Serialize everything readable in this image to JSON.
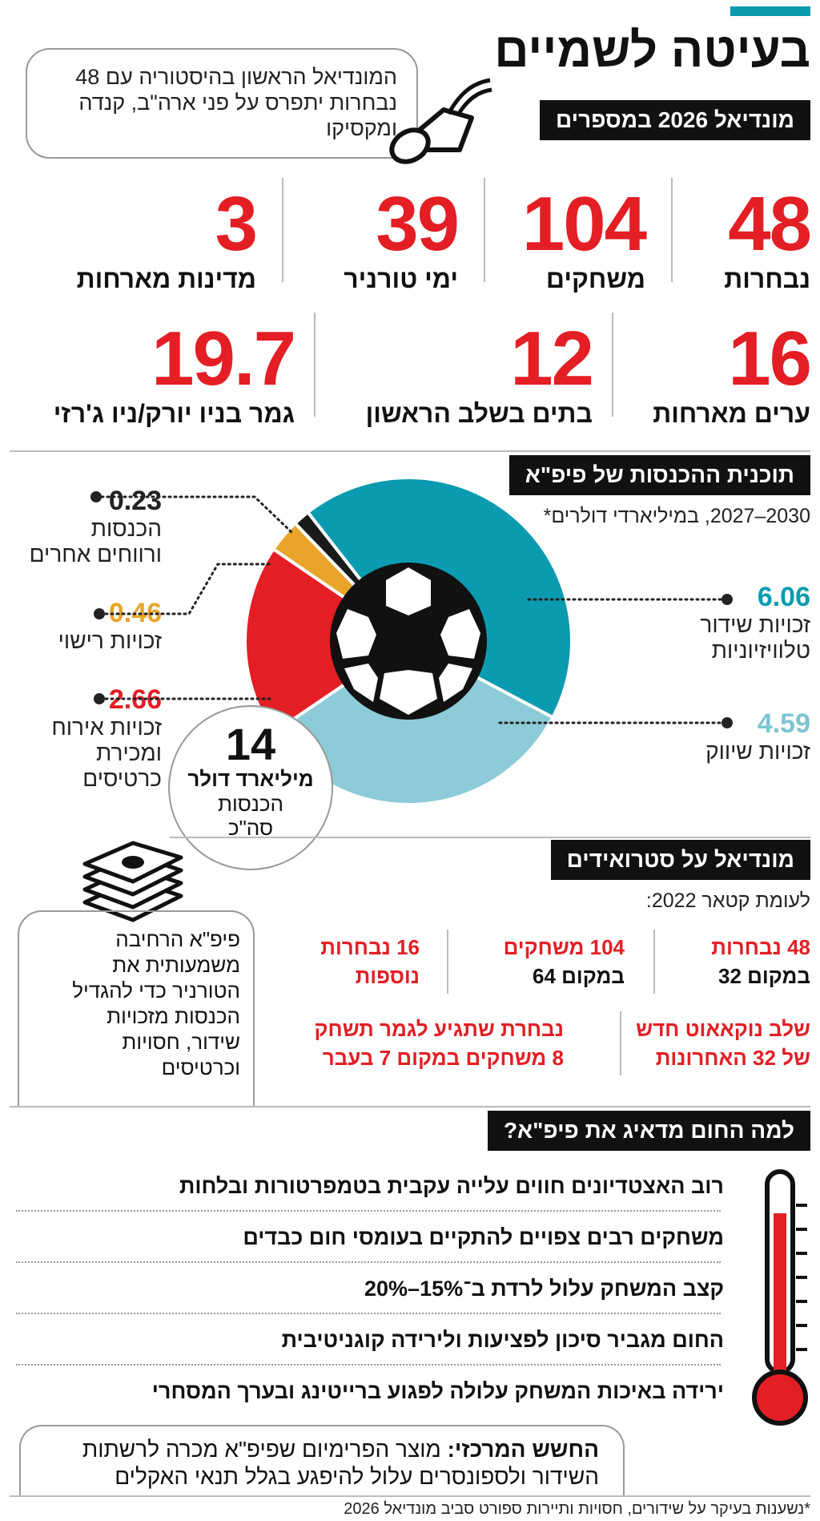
{
  "headline": "בעיטה לשמיים",
  "intro_box": "המונדיאל הראשון בהיסטוריה עם 48 נבחרות יתפרס על פני ארה\"ב, קנדה ומקסיקו",
  "section_numbers": {
    "title": "מונדיאל 2026 במספרים",
    "stats": [
      {
        "value": "48",
        "label": "נבחרות"
      },
      {
        "value": "104",
        "label": "משחקים"
      },
      {
        "value": "39",
        "label": "ימי טורניר"
      },
      {
        "value": "3",
        "label": "מדינות מארחות"
      },
      {
        "value": "16",
        "label": "ערים מארחות"
      },
      {
        "value": "12",
        "label": "בתים בשלב הראשון"
      },
      {
        "value": "19.7",
        "label": "גמר בניו יורק/ניו ג'רזי"
      }
    ]
  },
  "section_revenue": {
    "title": "תוכנית ההכנסות של פיפ\"א",
    "subtitle": "2030–2027, במיליארדי דולרים*",
    "total_value": "14",
    "total_unit": "מיליארד דולר",
    "total_label_1": "הכנסות",
    "total_label_2": "סה\"כ"
  },
  "chart_data": {
    "type": "pie",
    "title": "תוכנית ההכנסות של פיפ\"א",
    "subtitle": "2030–2027, במיליארדי דולרים*",
    "slices": [
      {
        "label_1": "זכויות שידור",
        "label_2": "טלוויזיוניות",
        "value": 6.06,
        "color": "#0b9bb0"
      },
      {
        "label_1": "זכויות שיווק",
        "label_2": "",
        "value": 4.59,
        "color": "#8ccbd7"
      },
      {
        "label_1": "זכויות אירוח",
        "label_2": "ומכירת",
        "label_3": "כרטיסים",
        "value": 2.66,
        "color": "#e31e24"
      },
      {
        "label_1": "זכויות רישוי",
        "label_2": "",
        "value": 0.46,
        "color": "#e8a52a"
      },
      {
        "label_1": "הכנסות",
        "label_2": "ורווחים אחרים",
        "value": 0.23,
        "color": "#1a1a1a"
      }
    ],
    "value_labels": [
      "6.06",
      "4.59",
      "2.66",
      "0.46",
      "0.23"
    ]
  },
  "section_steroids": {
    "title": "מונדיאל על סטרואידים",
    "subtitle": "לעומת קטאר 2022:",
    "items": [
      {
        "line1": "48 נבחרות",
        "line2": "במקום 32"
      },
      {
        "line1": "104 משחקים",
        "line2": "במקום 64"
      },
      {
        "line1": "16 נבחרות",
        "line2": "נוספות"
      },
      {
        "line1": "שלב נוקאאוט חדש",
        "line2": "של 32 האחרונות"
      },
      {
        "line1": "נבחרת שתגיע לגמר תשחק",
        "line2": "8 משחקים במקום 7 בעבר"
      }
    ],
    "side_box": [
      "פיפ\"א הרחיבה",
      "משמעותית את",
      "הטורניר כדי להגדיל",
      "הכנסות מזכויות",
      "שידור, חסויות",
      "וכרטיסים"
    ]
  },
  "section_heat": {
    "title": "למה החום מדאיג את פיפ\"א?",
    "items": [
      "רוב האצטדיונים חווים עלייה עקבית בטמפרטורות ובלחות",
      "משחקים רבים צפויים להתקיים בעומסי חום כבדים",
      "קצב המשחק עלול לרדת ב־15%–20%",
      "החום מגביר סיכון לפציעות ולירידה קוגניטיבית",
      "ירידה באיכות המשחק עלולה לפגוע ברייטינג ובערך המסחרי"
    ],
    "concern_bold": "החשש המרכזי:",
    "concern_text_1": "מוצר הפרימיום שפיפ\"א מכרה לרשתות",
    "concern_text_2": "השידור ולספונסרים עלול להיפגע בגלל תנאי האקלים"
  },
  "footnote": "*נשענות בעיקר על שידורים, חסויות ותיירות ספורט סביב מונדיאל 2026",
  "colors": {
    "accent_red": "#e31e24",
    "teal": "#0b9bb0",
    "light_teal": "#8ccbd7",
    "yellow": "#e8a52a"
  }
}
